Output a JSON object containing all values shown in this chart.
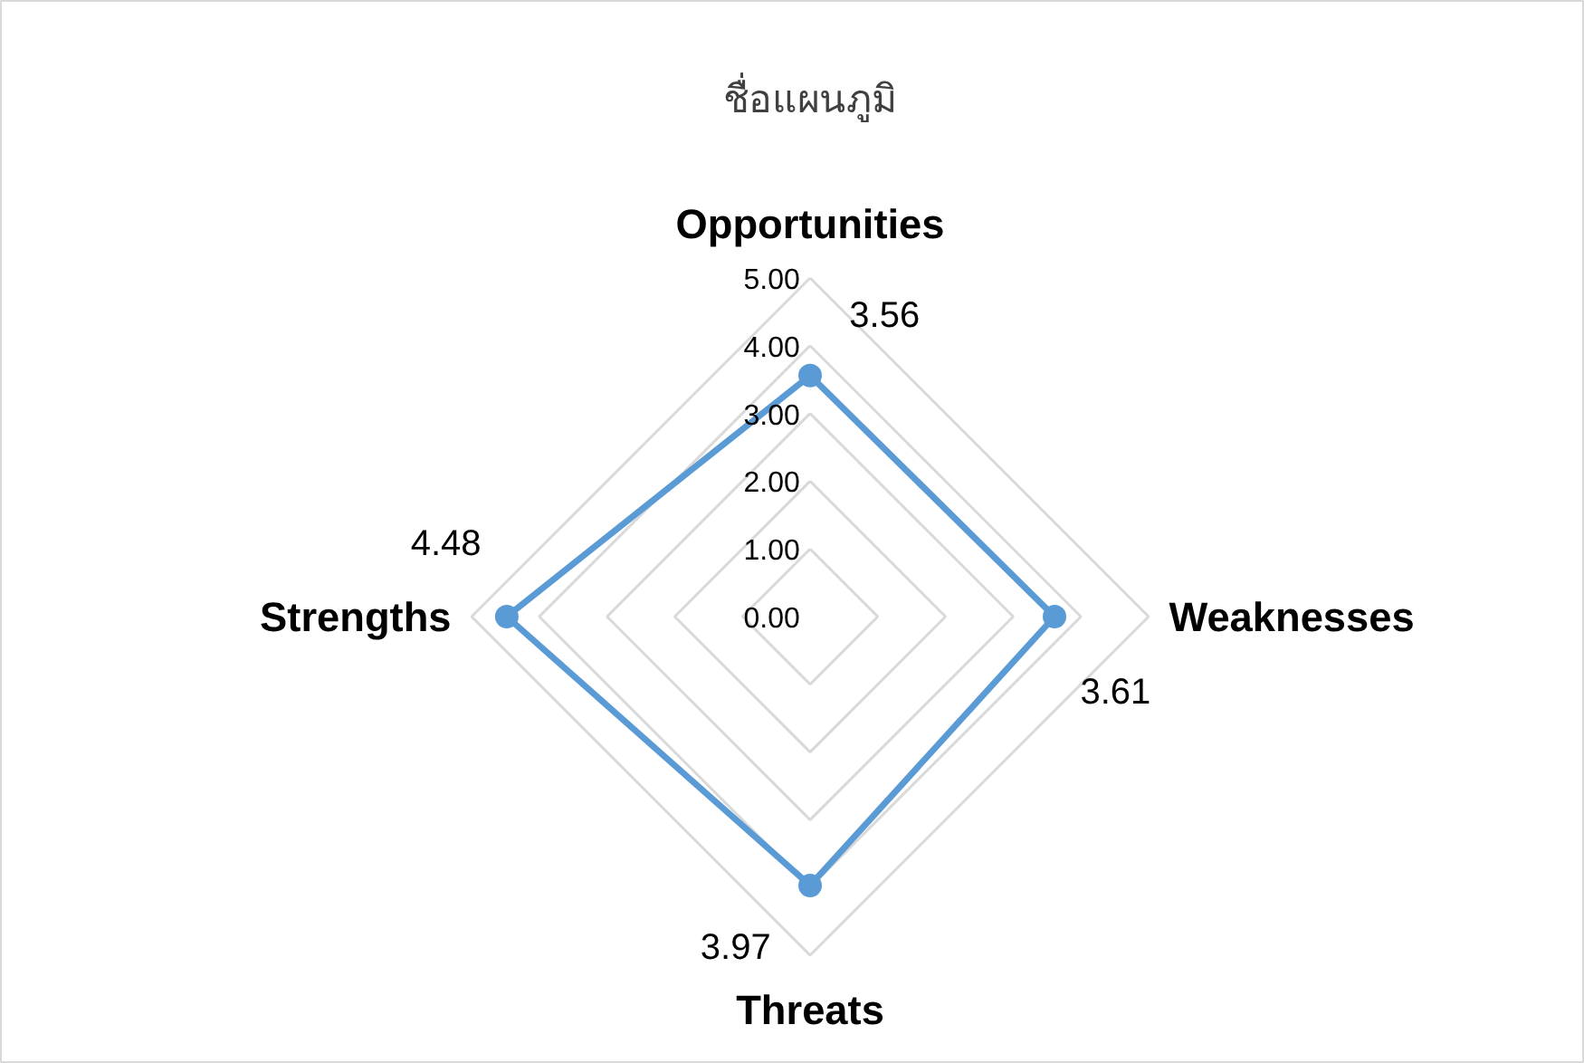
{
  "chart_data": {
    "type": "radar",
    "title": "ชื่อแผนภูมิ",
    "categories": [
      "Opportunities",
      "Weaknesses",
      "Threats",
      "Strengths"
    ],
    "series": [
      {
        "color": "#5b9bd5",
        "values": [
          3.56,
          3.61,
          3.97,
          4.48
        ]
      }
    ],
    "ylim": [
      0,
      5
    ],
    "yticks": [
      {
        "value": 0,
        "label": "0.00"
      },
      {
        "value": 1,
        "label": "1.00"
      },
      {
        "value": 2,
        "label": "2.00"
      },
      {
        "value": 3,
        "label": "3.00"
      },
      {
        "value": 4,
        "label": "4.00"
      },
      {
        "value": 5,
        "label": "5.00"
      }
    ],
    "grid": true,
    "marker": "circle",
    "data_labels": true
  }
}
